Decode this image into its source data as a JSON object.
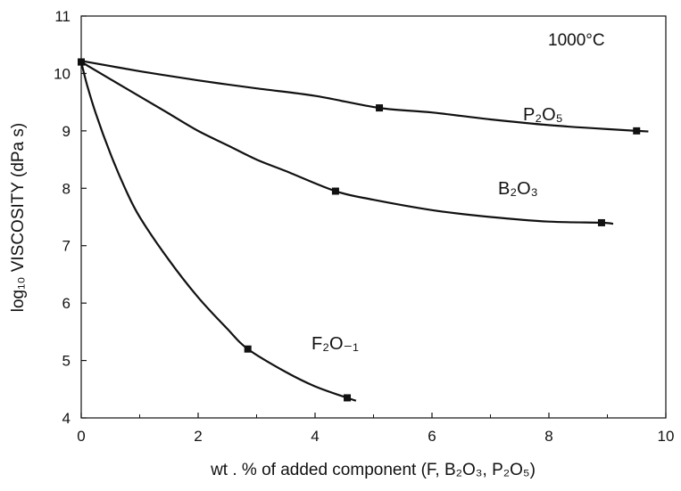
{
  "chart_data": {
    "type": "line",
    "xlabel": "wt . % of added component (F, B₂O₃, P₂O₅)",
    "ylabel": "log₁₀ VISCOSITY   (dPa s)",
    "xlim": [
      0,
      10
    ],
    "ylim": [
      4,
      11
    ],
    "x_ticks": [
      0,
      2,
      4,
      6,
      8,
      10
    ],
    "y_ticks": [
      4,
      5,
      6,
      7,
      8,
      9,
      10,
      11
    ],
    "grid": false,
    "annotation": "1000°C",
    "series": [
      {
        "name": "P₂O₅",
        "points": [
          [
            0,
            10.2
          ],
          [
            5.1,
            9.4
          ],
          [
            9.5,
            9.0
          ]
        ],
        "curve": [
          [
            0,
            10.22
          ],
          [
            1,
            10.04
          ],
          [
            2,
            9.88
          ],
          [
            3,
            9.74
          ],
          [
            4,
            9.61
          ],
          [
            5.1,
            9.4
          ],
          [
            6,
            9.32
          ],
          [
            7,
            9.2
          ],
          [
            8,
            9.1
          ],
          [
            9,
            9.03
          ],
          [
            9.5,
            9.0
          ],
          [
            9.7,
            8.99
          ]
        ]
      },
      {
        "name": "B₂O₃",
        "points": [
          [
            0,
            10.2
          ],
          [
            4.35,
            7.95
          ],
          [
            8.9,
            7.4
          ]
        ],
        "curve": [
          [
            0,
            10.2
          ],
          [
            0.5,
            9.9
          ],
          [
            1,
            9.6
          ],
          [
            1.5,
            9.3
          ],
          [
            2,
            9.0
          ],
          [
            2.5,
            8.75
          ],
          [
            3,
            8.5
          ],
          [
            3.5,
            8.3
          ],
          [
            4.35,
            7.95
          ],
          [
            5,
            7.8
          ],
          [
            6,
            7.62
          ],
          [
            7,
            7.5
          ],
          [
            8,
            7.42
          ],
          [
            8.9,
            7.4
          ],
          [
            9.1,
            7.38
          ]
        ]
      },
      {
        "name": "F₂O₋₁",
        "points": [
          [
            0,
            10.2
          ],
          [
            2.85,
            5.2
          ],
          [
            4.55,
            4.35
          ]
        ],
        "curve": [
          [
            0,
            10.2
          ],
          [
            0.1,
            9.8
          ],
          [
            0.25,
            9.3
          ],
          [
            0.5,
            8.6
          ],
          [
            0.75,
            8.0
          ],
          [
            1,
            7.5
          ],
          [
            1.5,
            6.75
          ],
          [
            2,
            6.1
          ],
          [
            2.5,
            5.55
          ],
          [
            2.85,
            5.2
          ],
          [
            3.5,
            4.8
          ],
          [
            4,
            4.55
          ],
          [
            4.55,
            4.35
          ],
          [
            4.7,
            4.3
          ]
        ]
      }
    ]
  }
}
